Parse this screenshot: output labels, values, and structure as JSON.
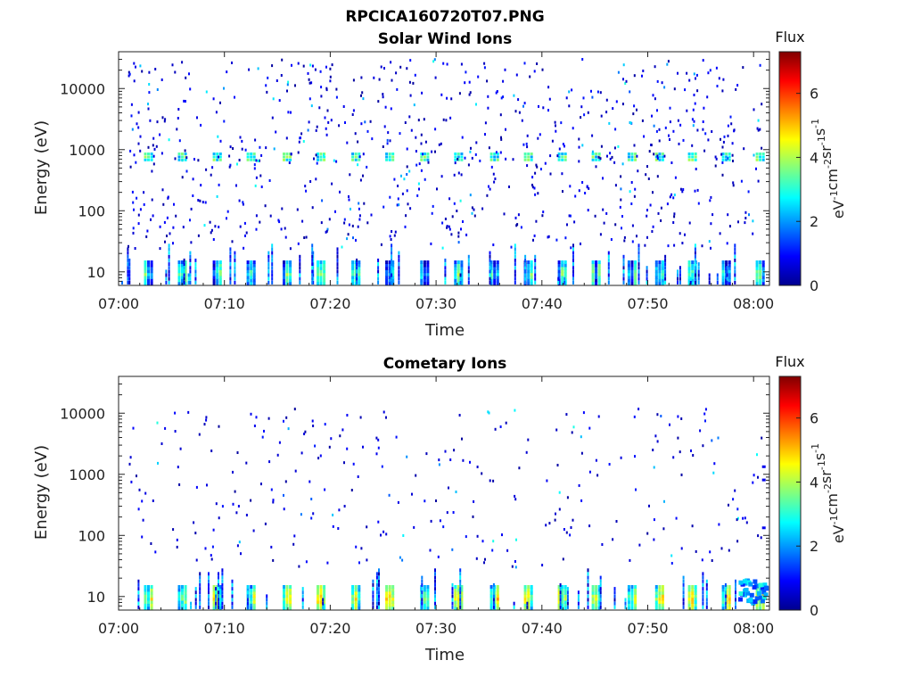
{
  "figure_title": "RPCICA160720T07.PNG",
  "chart_data": [
    {
      "type": "heatmap",
      "title": "Solar Wind Ions",
      "xlabel": "Time",
      "ylabel": "Energy (eV)",
      "x_ticks": [
        "07:00",
        "07:10",
        "07:20",
        "07:30",
        "07:40",
        "07:50",
        "08:00"
      ],
      "x_range_minutes": [
        0,
        61.5
      ],
      "y_ticks": [
        "10",
        "100",
        "1000",
        "10000"
      ],
      "ylim": [
        6,
        40000
      ],
      "y_scale": "log",
      "colorbar": {
        "title": "Flux",
        "label": "eV-1cm-2sr-1s-1",
        "ticks": [
          "0",
          "2",
          "4",
          "6"
        ],
        "range": [
          0,
          7.3
        ],
        "colormap": "jet"
      },
      "sweep_minutes": [
        2.7,
        5.9,
        9.2,
        12.4,
        15.8,
        19.0,
        22.3,
        25.5,
        28.8,
        32.0,
        35.4,
        38.6,
        41.8,
        45.0,
        48.4,
        51.0,
        54.1,
        57.3,
        60.5
      ],
      "solar_wind_energy_eV": 800
    },
    {
      "type": "heatmap",
      "title": "Cometary Ions",
      "xlabel": "Time",
      "ylabel": "Energy (eV)",
      "x_ticks": [
        "07:00",
        "07:10",
        "07:20",
        "07:30",
        "07:40",
        "07:50",
        "08:00"
      ],
      "x_range_minutes": [
        0,
        61.5
      ],
      "y_ticks": [
        "10",
        "100",
        "1000",
        "10000"
      ],
      "ylim": [
        6,
        40000
      ],
      "y_scale": "log",
      "colorbar": {
        "title": "Flux",
        "label": "eV-1cm-2sr-1s-1",
        "ticks": [
          "0",
          "2",
          "4",
          "6"
        ],
        "range": [
          0,
          7.3
        ],
        "colormap": "jet"
      },
      "sweep_minutes": [
        2.7,
        5.9,
        9.2,
        12.4,
        15.8,
        19.0,
        22.3,
        25.5,
        28.8,
        32.0,
        35.4,
        38.6,
        41.8,
        45.0,
        48.4,
        51.0,
        54.1,
        57.3,
        60.5
      ]
    }
  ]
}
